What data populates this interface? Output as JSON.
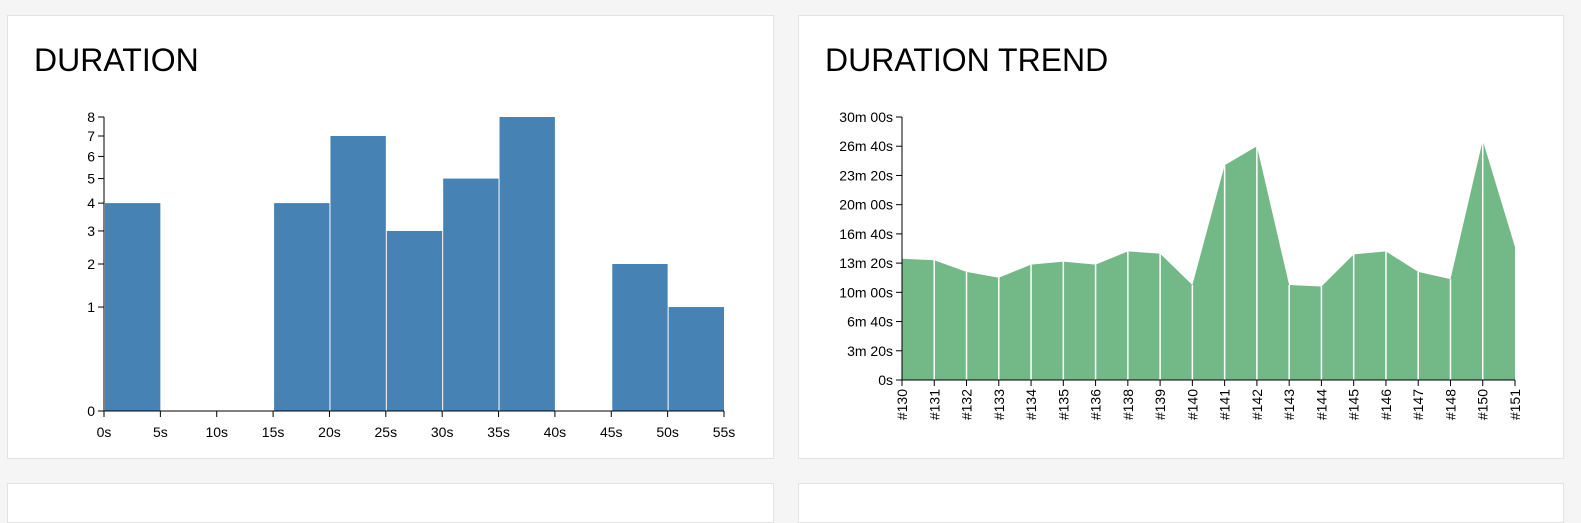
{
  "panels": {
    "duration": {
      "title": "DURATION"
    },
    "trend": {
      "title": "DURATION TREND"
    }
  },
  "chart_data": [
    {
      "type": "bar",
      "title": "DURATION",
      "x_tick_labels": [
        "0s",
        "5s",
        "10s",
        "15s",
        "20s",
        "25s",
        "30s",
        "35s",
        "40s",
        "45s",
        "50s",
        "55s"
      ],
      "y_tick_labels": [
        "0",
        "1",
        "2",
        "3",
        "4",
        "5",
        "6",
        "7",
        "8"
      ],
      "y_scale": "sqrt",
      "ylim": [
        0,
        8
      ],
      "xlim": [
        0,
        55
      ],
      "bins": [
        {
          "x0": 0,
          "x1": 5,
          "value": 4
        },
        {
          "x0": 5,
          "x1": 10,
          "value": 0
        },
        {
          "x0": 10,
          "x1": 15,
          "value": 0
        },
        {
          "x0": 15,
          "x1": 20,
          "value": 4
        },
        {
          "x0": 20,
          "x1": 25,
          "value": 7
        },
        {
          "x0": 25,
          "x1": 30,
          "value": 3
        },
        {
          "x0": 30,
          "x1": 35,
          "value": 5
        },
        {
          "x0": 35,
          "x1": 40,
          "value": 8
        },
        {
          "x0": 40,
          "x1": 45,
          "value": 0
        },
        {
          "x0": 45,
          "x1": 50,
          "value": 2
        },
        {
          "x0": 50,
          "x1": 55,
          "value": 1
        }
      ],
      "bar_color": "#4682b4"
    },
    {
      "type": "area",
      "title": "DURATION TREND",
      "categories": [
        "#130",
        "#131",
        "#132",
        "#133",
        "#134",
        "#135",
        "#136",
        "#138",
        "#139",
        "#140",
        "#141",
        "#142",
        "#143",
        "#144",
        "#145",
        "#146",
        "#147",
        "#148",
        "#150",
        "#151"
      ],
      "values_seconds": [
        830,
        820,
        740,
        700,
        790,
        810,
        790,
        880,
        865,
        650,
        1470,
        1600,
        650,
        640,
        860,
        880,
        740,
        690,
        1640,
        910
      ],
      "y_tick_labels": [
        "0s",
        "3m 20s",
        "6m 40s",
        "10m 00s",
        "13m 20s",
        "16m 40s",
        "20m 00s",
        "23m 20s",
        "26m 40s",
        "30m 00s"
      ],
      "y_tick_values_seconds": [
        0,
        200,
        400,
        600,
        800,
        1000,
        1200,
        1400,
        1600,
        1800
      ],
      "ylim_seconds": [
        0,
        1800
      ],
      "area_color": "#73b987"
    }
  ]
}
